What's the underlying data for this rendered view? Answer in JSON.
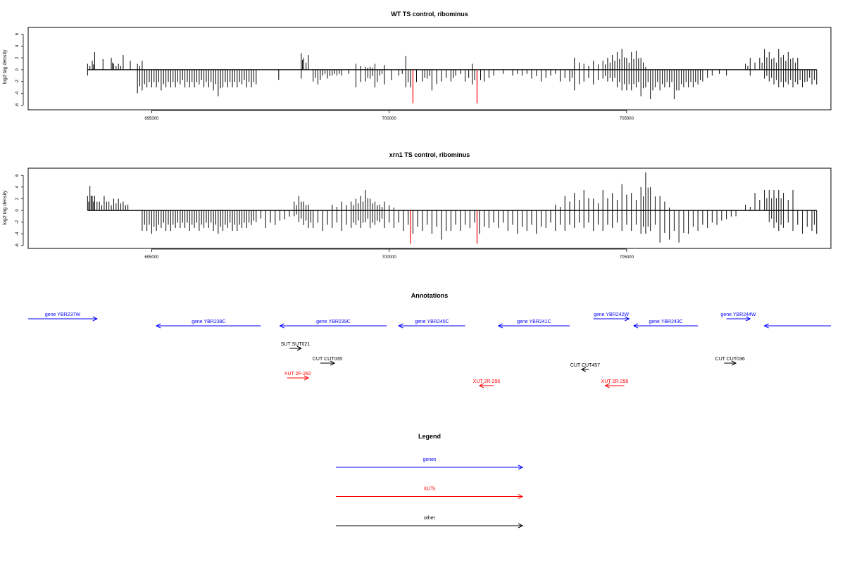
{
  "chart_data": [
    {
      "type": "bar",
      "title": "WT TS control, ribominus",
      "ylabel": "log2 tag density",
      "xlabel": "",
      "xlim": [
        692400,
        709300
      ],
      "ylim": [
        -6,
        7
      ],
      "xticks": [
        695000,
        700000,
        705000
      ],
      "yticks": [
        -6,
        -4,
        -2,
        0,
        2,
        4,
        6
      ],
      "grid": false,
      "highlight_color": "#ff0000",
      "bar_color": "#000000",
      "series": [
        {
          "x": [
            693650,
            693750,
            693800,
            694150,
            694200,
            694300,
            694400,
            694700,
            694800,
            694900,
            695000,
            695100,
            695200,
            695300,
            695400,
            695500,
            695600,
            695700,
            695800,
            695900,
            696000,
            696100,
            696200,
            696300,
            696400,
            696500,
            696600,
            696700,
            696800,
            696900,
            697000,
            697100,
            697200,
            698150,
            698200,
            698300,
            698400,
            698500,
            698600,
            698700,
            698800,
            698900,
            699000,
            699300,
            699500,
            699600,
            699700,
            699800,
            699900,
            700200,
            700350,
            700450,
            700700,
            700800,
            700900,
            701100,
            701300,
            701400,
            701600,
            701750,
            701850,
            702000,
            702200,
            702600,
            702800,
            703000,
            703200,
            703400,
            703600,
            703800,
            703900,
            704100,
            704300,
            704500,
            704600,
            704700,
            704800,
            704900,
            705000,
            705100,
            705200,
            705300,
            705400,
            705500,
            705600,
            705700,
            705800,
            705900,
            706000,
            706100,
            706200,
            706300,
            706400,
            706500,
            706600,
            706800,
            707100,
            707500,
            707600,
            707800,
            707900,
            708000,
            708100,
            708200,
            708300,
            708400,
            708500,
            708600,
            708700,
            708800,
            708900,
            709000
          ],
          "values": [
            1,
            1.5,
            3,
            2,
            1,
            1,
            2.5,
            1,
            1.5,
            0,
            0,
            0,
            0,
            0,
            0,
            0,
            0,
            0,
            0,
            0,
            0,
            0,
            0,
            0,
            0,
            0,
            0,
            0,
            0,
            0,
            0,
            0,
            0,
            2.8,
            2,
            2.5,
            0,
            0,
            0,
            0,
            0,
            0,
            0,
            1,
            0.5,
            0.5,
            1,
            0,
            0.8,
            0,
            2.3,
            0,
            0,
            0,
            0,
            0,
            0,
            0,
            0,
            1,
            0,
            0,
            0,
            0,
            0,
            0,
            0,
            0,
            0,
            0,
            2,
            1,
            1.5,
            1.5,
            2,
            2.5,
            3,
            3.5,
            2,
            3,
            3.2,
            2,
            0.5,
            0,
            0,
            0,
            0,
            0,
            0,
            0,
            0,
            0,
            0,
            0,
            0,
            0,
            0,
            1,
            2,
            2,
            3.5,
            3,
            2,
            3.5,
            2.5,
            3,
            2,
            2,
            0,
            0,
            0,
            0
          ],
          "neg": [
            -1,
            0,
            0,
            0,
            0,
            0,
            0,
            -4,
            -3.5,
            -3,
            -3,
            -3,
            -3.5,
            -3,
            -3,
            -3,
            -2.5,
            -3,
            -3,
            -3,
            -2.5,
            -3,
            -3,
            -3.5,
            -4.5,
            -3,
            -3,
            -3,
            -3,
            -2.5,
            -3,
            -3,
            -2.5,
            -1.5,
            0,
            0,
            -2,
            -2.5,
            -1,
            -1.5,
            -1,
            -1,
            -1,
            -3,
            -2,
            -1.5,
            -3,
            -1,
            -2.5,
            -1,
            -3,
            -3,
            -2,
            -1.5,
            -3.5,
            -2,
            -2,
            -1,
            -2,
            -2.5,
            -2.5,
            -2,
            -1,
            -1,
            -1,
            -1.5,
            -2,
            -1,
            -2,
            -2,
            -3.5,
            -2,
            -2.5,
            -1.5,
            -2,
            -2,
            -3,
            -3.5,
            -3.5,
            -3.5,
            -3,
            -4.5,
            -3,
            -5,
            -3,
            -3.5,
            -3,
            -3,
            -5,
            -3.5,
            -3,
            -3,
            -3,
            -2.5,
            -2,
            -1,
            -1,
            0,
            -1,
            0,
            -1.5,
            -2,
            -2.5,
            -3,
            -3,
            -2.5,
            -3,
            -2.5,
            -3,
            -2,
            -2.5,
            -2.5
          ]
        }
      ],
      "highlight_bars": [
        {
          "x": 700500,
          "value": -5.7
        },
        {
          "x": 701850,
          "value": -5.7
        }
      ]
    },
    {
      "type": "bar",
      "title": "xrn1 TS control, ribominus",
      "ylabel": "log2 tag density",
      "xlabel": "",
      "xlim": [
        692400,
        709300
      ],
      "ylim": [
        -6,
        7
      ],
      "xticks": [
        695000,
        700000,
        705000
      ],
      "yticks": [
        -6,
        -4,
        -2,
        0,
        2,
        4,
        6
      ],
      "grid": false,
      "highlight_color": "#ff0000",
      "bar_color": "#000000",
      "series": [
        {
          "x": [
            693650,
            693700,
            693750,
            693800,
            693900,
            694000,
            694100,
            694200,
            694300,
            694400,
            694500,
            694800,
            694900,
            695000,
            695100,
            695200,
            695300,
            695400,
            695500,
            695600,
            695700,
            695800,
            695900,
            696000,
            696100,
            696200,
            696300,
            696400,
            696500,
            696600,
            696700,
            696800,
            696900,
            697000,
            697100,
            697200,
            697400,
            697600,
            697800,
            698000,
            698100,
            698200,
            698300,
            698400,
            698600,
            698800,
            699000,
            699200,
            699300,
            699400,
            699500,
            699600,
            699700,
            699800,
            699900,
            700100,
            700300,
            700500,
            700700,
            700900,
            701100,
            701300,
            701500,
            701700,
            701900,
            702100,
            702300,
            702500,
            702700,
            702900,
            703100,
            703300,
            703500,
            703700,
            703900,
            704100,
            704300,
            704500,
            704700,
            704900,
            705100,
            705300,
            705400,
            705500,
            705700,
            705900,
            706100,
            706300,
            706500,
            706700,
            706900,
            707100,
            707300,
            707500,
            707700,
            707900,
            708000,
            708100,
            708200,
            708300,
            708500,
            708700,
            708900,
            709000
          ],
          "values": [
            2.5,
            4.2,
            2.5,
            2.5,
            1.5,
            2.5,
            1.5,
            2,
            2,
            1.5,
            1,
            0,
            0,
            0,
            0,
            0,
            0,
            0,
            0,
            0,
            0,
            0,
            0,
            0,
            0,
            0,
            0,
            0,
            0,
            0,
            0,
            0,
            0,
            0,
            0,
            0,
            0,
            0,
            0,
            1.5,
            2.5,
            1.5,
            1,
            0,
            0,
            1,
            1.5,
            1.5,
            2,
            2.5,
            3.5,
            2,
            1.5,
            1,
            1.5,
            0.5,
            0,
            0,
            0,
            0,
            0,
            0,
            0,
            0,
            0,
            0,
            0,
            0,
            0,
            0,
            0,
            0,
            1,
            2.5,
            3,
            3.5,
            2,
            3.5,
            3,
            4.5,
            3,
            4,
            6.5,
            4,
            2.5,
            0.5,
            0,
            0,
            0,
            0,
            0,
            0,
            0,
            1,
            3,
            3.5,
            3.5,
            3.5,
            3.5,
            3,
            3.5,
            0,
            0,
            0
          ],
          "neg": [
            0,
            0,
            0,
            0,
            0,
            0,
            0,
            0,
            0,
            0,
            0,
            -3.5,
            -3.5,
            -4,
            -3.5,
            -3,
            -3.5,
            -3.5,
            -3,
            -3,
            -3,
            -3.5,
            -3,
            -3.5,
            -3,
            -3,
            -3.5,
            -4,
            -3.5,
            -3,
            -3.5,
            -3.5,
            -3,
            -3,
            -2.5,
            -2,
            -3,
            -2.5,
            -1.5,
            -1,
            -2,
            -2.5,
            -3,
            -3,
            -3.5,
            -3,
            -3.5,
            -3,
            -2.5,
            -3,
            -2,
            -3,
            -2.5,
            -2,
            -3,
            -3,
            -3.5,
            -4,
            -3.5,
            -4,
            -5,
            -3.5,
            -3.5,
            -3,
            -4,
            -3,
            -3,
            -3.5,
            -4,
            -3.5,
            -4,
            -3,
            -3.5,
            -3.5,
            -3,
            -3,
            -3.5,
            -3.5,
            -3,
            -3.5,
            -3.5,
            -4,
            -4,
            -3.5,
            -5.5,
            -5,
            -5.5,
            -4,
            -3.5,
            -3,
            -2.5,
            -1.5,
            -1,
            0,
            0,
            0,
            -2,
            -3,
            -3.5,
            -3,
            -3.5,
            -4,
            -3.5,
            -4
          ]
        }
      ],
      "highlight_bars": [
        {
          "x": 700450,
          "value": -5.7
        },
        {
          "x": 701850,
          "value": -5.7
        }
      ]
    }
  ],
  "annotations": {
    "title": "Annotations",
    "items": [
      {
        "label": "gene YBR237W",
        "start": 692400,
        "end": 693850,
        "row": 0,
        "color": "#0000ff",
        "dir": "right"
      },
      {
        "label": "gene YBR238C",
        "start": 695100,
        "end": 697300,
        "row": 1,
        "color": "#0000ff",
        "dir": "left"
      },
      {
        "label": "gene YBR239C",
        "start": 697700,
        "end": 699950,
        "row": 1,
        "color": "#0000ff",
        "dir": "left"
      },
      {
        "label": "gene YBR240C",
        "start": 700200,
        "end": 701600,
        "row": 1,
        "color": "#0000ff",
        "dir": "left"
      },
      {
        "label": "gene YBR241C",
        "start": 702300,
        "end": 703800,
        "row": 1,
        "color": "#0000ff",
        "dir": "left"
      },
      {
        "label": "gene YBR242W",
        "start": 704300,
        "end": 705050,
        "row": 0,
        "color": "#0000ff",
        "dir": "right"
      },
      {
        "label": "gene YBR243C",
        "start": 705150,
        "end": 706500,
        "row": 1,
        "color": "#0000ff",
        "dir": "left"
      },
      {
        "label": "gene YBR244W",
        "start": 707100,
        "end": 707600,
        "row": 0,
        "color": "#0000ff",
        "dir": "right"
      },
      {
        "label": "",
        "start": 707900,
        "end": 709300,
        "row": 1,
        "color": "#0000ff",
        "dir": "left"
      },
      {
        "label": "SUT SUT021",
        "start": 697900,
        "end": 698150,
        "row": 2,
        "color": "#000000",
        "dir": "right"
      },
      {
        "label": "CUT CUT035",
        "start": 698550,
        "end": 698850,
        "row": 3,
        "color": "#000000",
        "dir": "right"
      },
      {
        "label": "CUT CUT457",
        "start": 704050,
        "end": 704200,
        "row": 4,
        "color": "#000000",
        "dir": "left"
      },
      {
        "label": "CUT CUT036",
        "start": 707050,
        "end": 707300,
        "row": 3,
        "color": "#000000",
        "dir": "right"
      },
      {
        "label": "XUT 2F-282",
        "start": 697850,
        "end": 698300,
        "row": 5,
        "color": "#ff0000",
        "dir": "right"
      },
      {
        "label": "XUT 2R-296",
        "start": 701900,
        "end": 702200,
        "row": 6,
        "color": "#ff0000",
        "dir": "left"
      },
      {
        "label": "XUT 2R-299",
        "start": 704550,
        "end": 704950,
        "row": 6,
        "color": "#ff0000",
        "dir": "left"
      }
    ]
  },
  "legend": {
    "title": "Legend",
    "items": [
      {
        "label": "genes",
        "color": "#0000ff"
      },
      {
        "label": "XUTs",
        "color": "#ff0000"
      },
      {
        "label": "other",
        "color": "#000000"
      }
    ]
  }
}
